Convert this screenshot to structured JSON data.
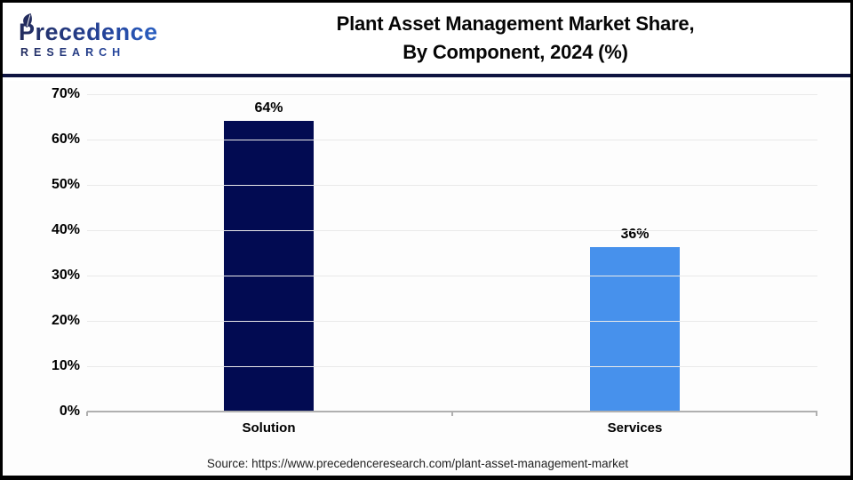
{
  "header": {
    "logo": {
      "wordmark": "Precedence",
      "subtext": "RESEARCH",
      "leaf_icon": "leaf-icon"
    },
    "title_line1": "Plant Asset Management Market Share,",
    "title_line2": "By Component, 2024 (%)"
  },
  "chart_data": {
    "type": "bar",
    "title": "Plant Asset Management Market Share, By Component, 2024 (%)",
    "categories": [
      "Solution",
      "Services"
    ],
    "values": [
      64,
      36
    ],
    "value_labels": [
      "64%",
      "36%"
    ],
    "bar_colors": [
      "#020b52",
      "#4791ec"
    ],
    "ylim": [
      0,
      70
    ],
    "y_tick_step": 10,
    "y_tick_labels": [
      "70%",
      "60%",
      "50%",
      "40%",
      "30%",
      "20%",
      "10%",
      "0%"
    ],
    "xlabel": "",
    "ylabel": "",
    "grid": "horizontal gridlines on",
    "legend": "none"
  },
  "footer": {
    "source": "Source: https://www.precedenceresearch.com/plant-asset-management-market"
  },
  "colors": {
    "header_divider": "#0e1440",
    "axis_line": "#b0b0b0",
    "gridline": "#e9e9e9",
    "bar_solution": "#020b52",
    "bar_services": "#4791ec",
    "logo_navy": "#232c5e",
    "logo_blue": "#2e71d9",
    "frame_border": "#000000"
  }
}
